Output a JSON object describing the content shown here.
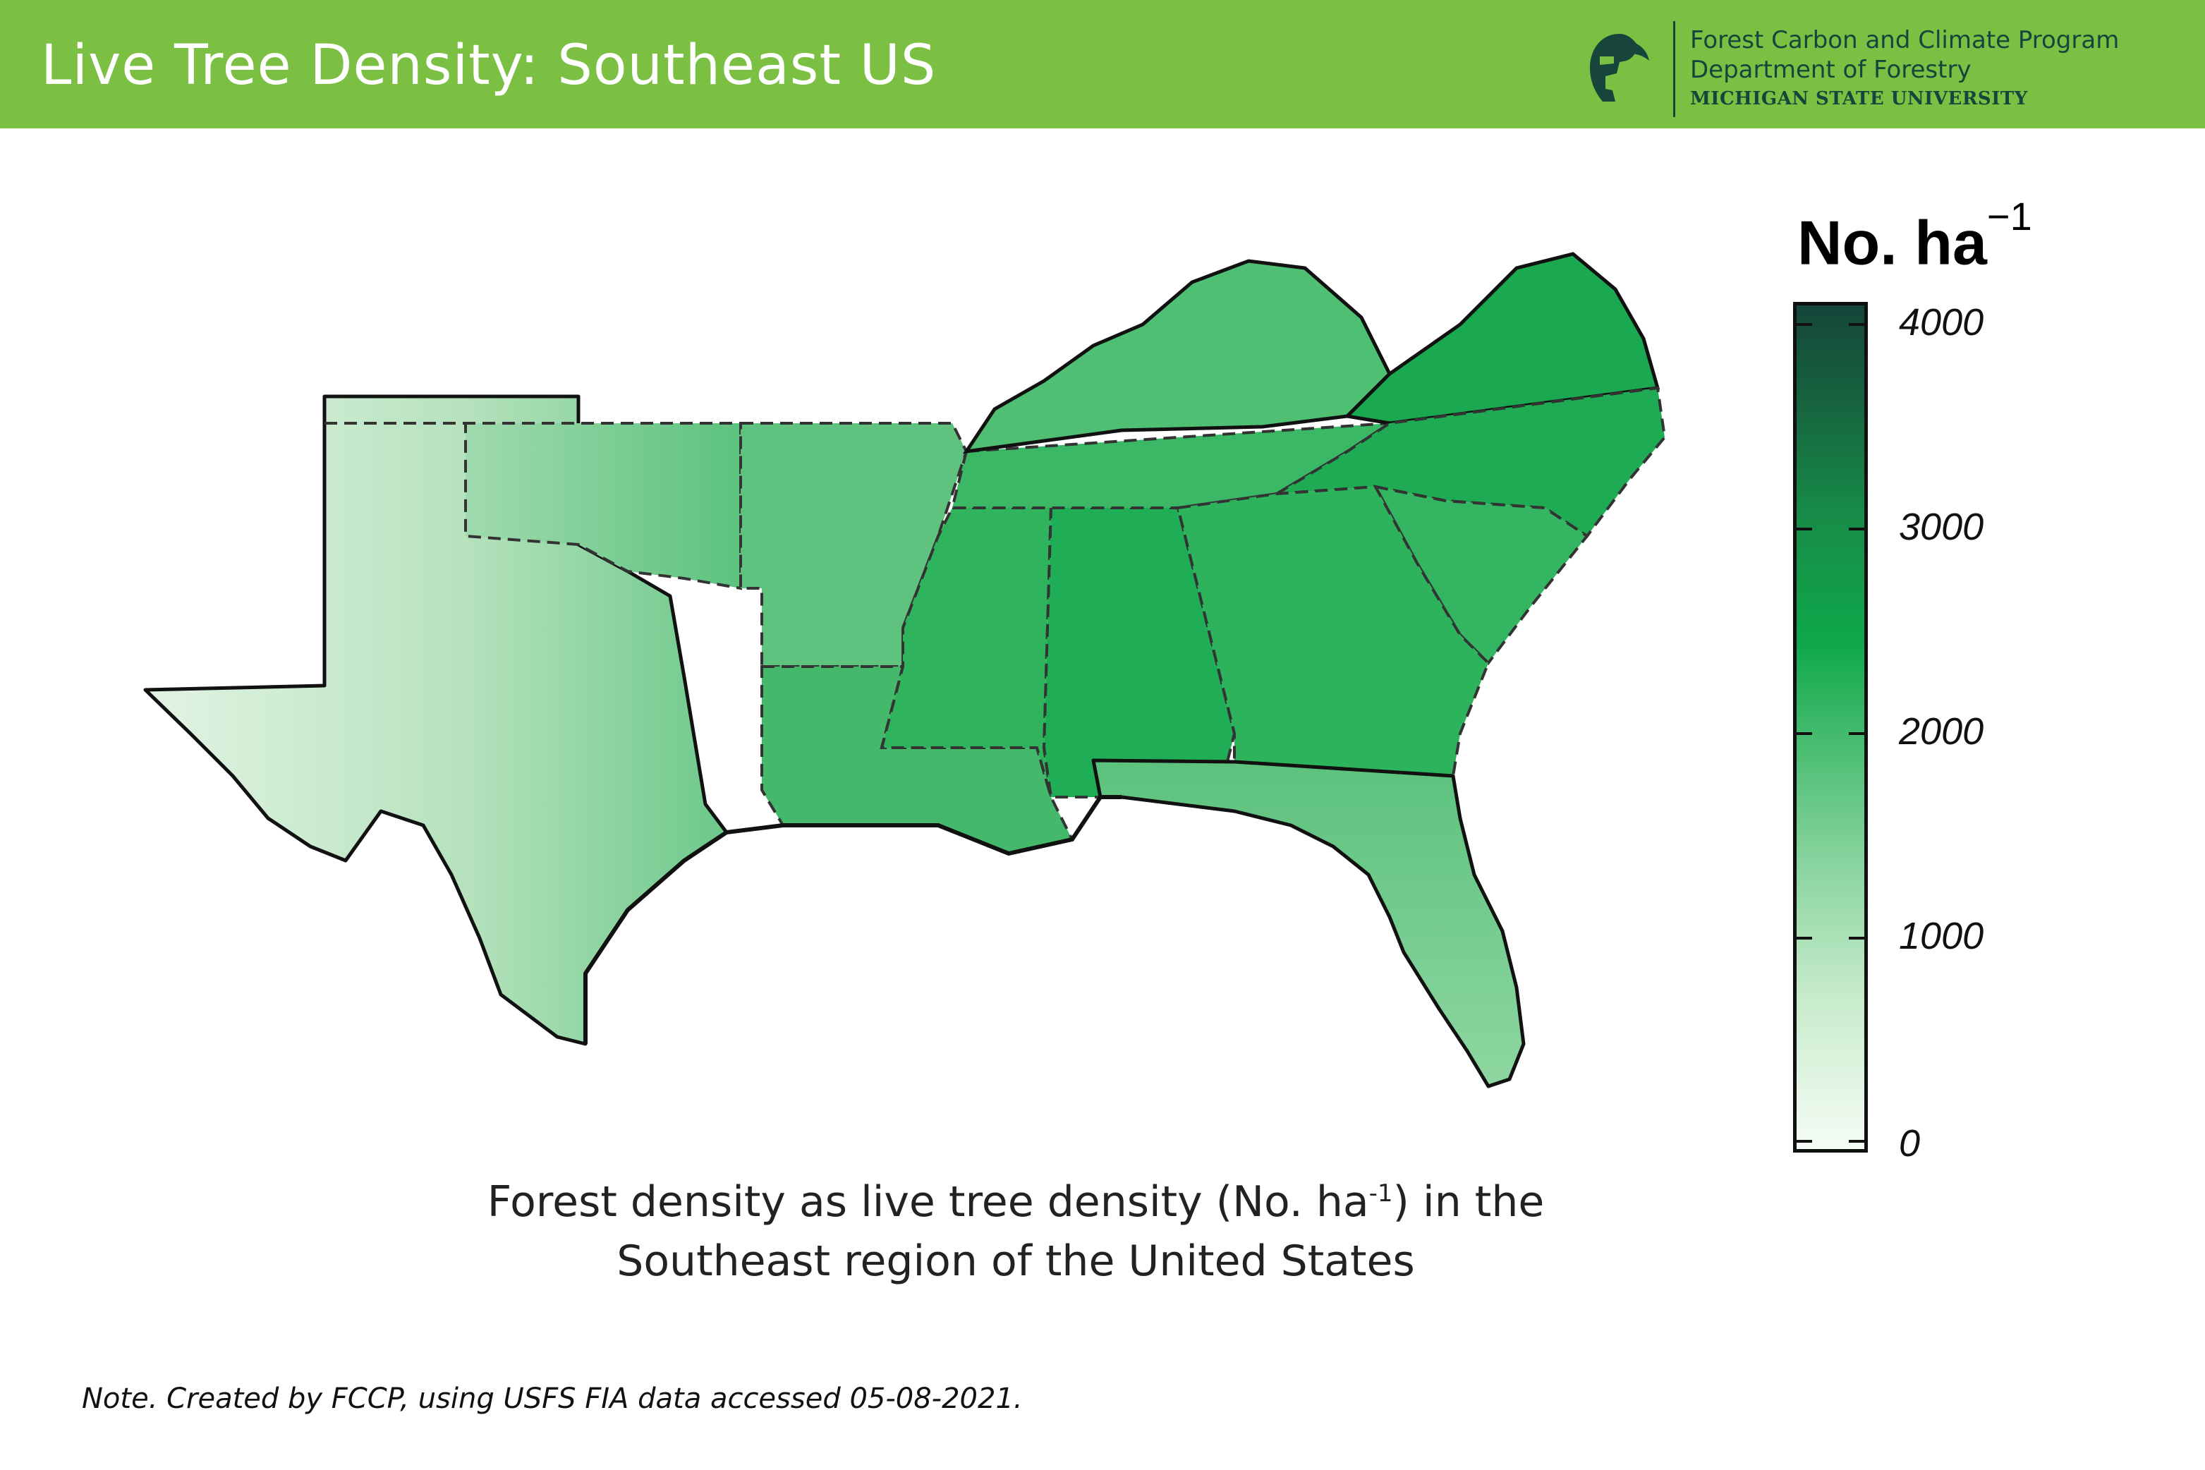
{
  "header": {
    "title": "Live Tree Density: Southeast US",
    "org_line1": "Forest Carbon and Climate Program",
    "org_line2": "Department of Forestry",
    "org_line3": "MICHIGAN STATE UNIVERSITY",
    "logo_icon": "spartan-helmet-icon",
    "background_color": "#7bbf43"
  },
  "legend": {
    "title": "No. ha",
    "title_superscript": "−1",
    "min": 0,
    "max": 4000,
    "ticks": [
      "4000",
      "3000",
      "2000",
      "1000",
      "0"
    ],
    "tick_values": [
      4000,
      3000,
      2000,
      1000,
      0
    ],
    "colors": [
      "#f5fcf5",
      "#84d29b",
      "#0fa84a",
      "#17653f",
      "#15463a"
    ]
  },
  "caption": {
    "line1_a": "Forest density as live tree density (No. ha",
    "line1_sup": "-1",
    "line1_b": ") in the",
    "line2": "Southeast region of the United States"
  },
  "note": "Note. Created by FCCP, using USFS FIA data accessed 05-08-2021."
}
